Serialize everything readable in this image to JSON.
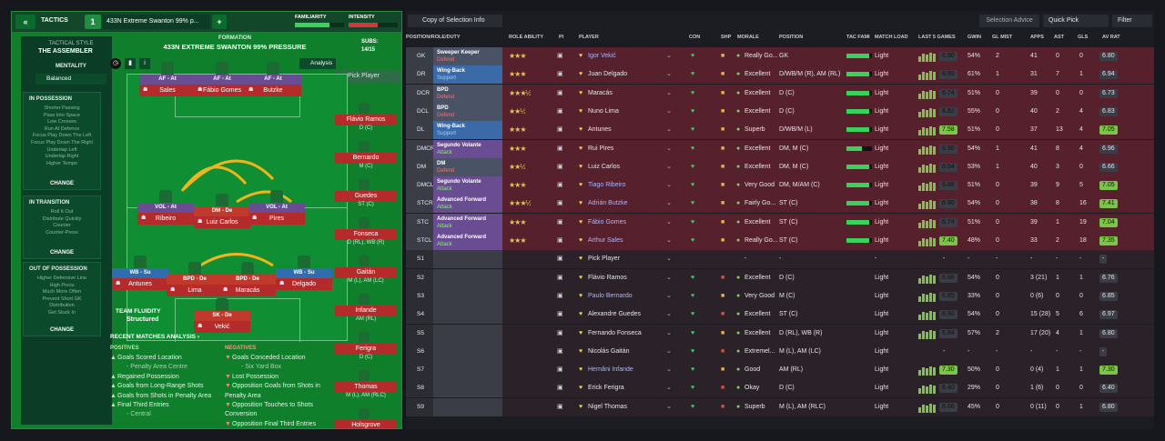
{
  "tactics_bar": {
    "back_label": "«",
    "tactics_label": "TACTICS",
    "slot_number": "1",
    "tactic_name": "433N Extreme Swanton 99% p...",
    "add_label": "+",
    "familiarity_label": "FAMILIARITY",
    "intensity_label": "INTENSITY"
  },
  "tactical_style": {
    "label": "TACTICAL STYLE",
    "value": "THE ASSEMBLER",
    "mentality_label": "MENTALITY",
    "mentality_value": "Balanced"
  },
  "in_possession": {
    "title": "IN POSSESSION",
    "items": [
      "Shorter Passing",
      "Pass Into Space",
      "Low Crosses",
      "Run At Defence",
      "Focus Play Down The Left",
      "Focus Play Down The Right",
      "Underlap Left",
      "Underlap Right",
      "Higher Tempo"
    ],
    "change": "CHANGE"
  },
  "in_transition": {
    "title": "IN TRANSITION",
    "items": [
      "Roll It Out",
      "Distribute Quickly",
      "Counter",
      "Counter-Press"
    ],
    "change": "CHANGE"
  },
  "out_of_possession": {
    "title": "OUT OF POSSESSION",
    "items": [
      "Higher Defensive Line",
      "High Press",
      "Much More Often",
      "Prevent Short GK",
      "Distribution",
      "Get Stuck In"
    ],
    "change": "CHANGE"
  },
  "formation": {
    "label": "FORMATION",
    "name": "433N EXTREME SWANTON 99% PRESSURE",
    "subs_label": "SUBS:",
    "subs_value": "14/15",
    "analysis_label": "Analysis",
    "pick_player": "Pick Player",
    "team_fluidity_label": "TEAM FLUIDITY",
    "team_fluidity_value": "Structured"
  },
  "pitch_players": [
    {
      "role": "AF - At",
      "name": "Sales"
    },
    {
      "role": "AF - At",
      "name": "Fábio Gomes"
    },
    {
      "role": "AF - At",
      "name": "Butzke"
    },
    {
      "role": "VOL - At",
      "name": "Ribeiro"
    },
    {
      "role": "DM - De",
      "name": "Luiz Carlos"
    },
    {
      "role": "VOL - At",
      "name": "Pires"
    },
    {
      "role": "WB - Su",
      "name": "Antunes"
    },
    {
      "role": "BPD - De",
      "name": "Lima"
    },
    {
      "role": "BPD - De",
      "name": "Maracás"
    },
    {
      "role": "WB - Su",
      "name": "Delgado"
    },
    {
      "role": "SK - De",
      "name": "Vekić"
    }
  ],
  "subs": [
    {
      "name": "Flávio Ramos",
      "pos": "D (C)"
    },
    {
      "name": "Bernardo",
      "pos": "M (C)"
    },
    {
      "name": "Guedes",
      "pos": "ST (C)"
    },
    {
      "name": "Fonseca",
      "pos": "D (RL), WB (R)"
    },
    {
      "name": "Gaitán",
      "pos": "M (L), AM (LC)"
    },
    {
      "name": "Infande",
      "pos": "AM (RL)"
    },
    {
      "name": "Ferigra",
      "pos": "D (C)"
    },
    {
      "name": "Thomas",
      "pos": "M (L), AM (RLC)"
    },
    {
      "name": "Holsgrove",
      "pos": ""
    }
  ],
  "recent": {
    "title": "RECENT MATCHES ANALYSIS ›",
    "positives_label": "POSITIVES",
    "negatives_label": "NEGATIVES",
    "positives": [
      "Goals Scored Location",
      "- Penalty Area Centre",
      "Regained Possession",
      "Goals from Long-Range Shots",
      "Goals from Shots in Penalty Area",
      "Final Third Entries",
      "- Central"
    ],
    "negatives": [
      "Goals Conceded Location",
      "- Six Yard Box",
      "Lost Possession",
      "Opposition Goals from Shots in Penalty Area",
      "Opposition Touches to Shots Conversion",
      "Opposition Final Third Entries"
    ]
  },
  "toolbar": {
    "view_label": "Copy of Selection Info",
    "selection_advice": "Selection Advice",
    "quick_pick": "Quick Pick",
    "filter": "Filter"
  },
  "columns": [
    "POSITION/ROLE/DUTY",
    "ROLE ABILITY",
    "PI",
    "PLAYER",
    "CON",
    "SHP",
    "MORALE",
    "POSITION",
    "TAC FAMI",
    "MATCH LOAD",
    "LAST 5 GAMES",
    "GWIN",
    "GL MIST",
    "APPS",
    "AST",
    "GLS",
    "AV RAT"
  ],
  "rows": [
    {
      "pos": "GK",
      "role": "Sweeper Keeper",
      "duty": "Defend",
      "stars": "★★★",
      "player": "Igor Vekić",
      "morale": "Really Go...",
      "position": "GK",
      "load": "Light",
      "last": "6.90",
      "gwin": "54%",
      "glmist": "2",
      "apps": "41",
      "ast": "0",
      "gls": "0",
      "avrat": "6.80"
    },
    {
      "pos": "DR",
      "role": "Wing-Back",
      "duty": "Support",
      "stars": "★★★",
      "player": "Juan Delgado",
      "morale": "Excellent",
      "position": "D/WB/M (R), AM (RL)",
      "load": "Light",
      "last": "6.90",
      "gwin": "61%",
      "glmist": "1",
      "apps": "31",
      "ast": "7",
      "gls": "1",
      "avrat": "6.94"
    },
    {
      "pos": "DCR",
      "role": "BPD",
      "duty": "Defend",
      "stars": "★★★½",
      "player": "Maracás",
      "morale": "Excellent",
      "position": "D (C)",
      "load": "Light",
      "last": "6.74",
      "gwin": "51%",
      "glmist": "0",
      "apps": "39",
      "ast": "0",
      "gls": "0",
      "avrat": "6.73"
    },
    {
      "pos": "DCL",
      "role": "BPD",
      "duty": "Defend",
      "stars": "★★½",
      "player": "Nuno Lima",
      "morale": "Excellent",
      "position": "D (C)",
      "load": "Light",
      "last": "6.82",
      "gwin": "55%",
      "glmist": "0",
      "apps": "40",
      "ast": "2",
      "gls": "4",
      "avrat": "6.83"
    },
    {
      "pos": "DL",
      "role": "Wing-Back",
      "duty": "Support",
      "stars": "★★★",
      "player": "Antunes",
      "morale": "Superb",
      "position": "D/WB/M (L)",
      "load": "Light",
      "last": "7.58",
      "gwin": "51%",
      "glmist": "0",
      "apps": "37",
      "ast": "13",
      "gls": "4",
      "avrat": "7.05"
    },
    {
      "pos": "DMCR",
      "role": "Segundo Volante",
      "duty": "Attack",
      "stars": "★★★",
      "player": "Rui Pires",
      "morale": "Excellent",
      "position": "DM, M (C)",
      "load": "Light",
      "last": "6.90",
      "gwin": "54%",
      "glmist": "1",
      "apps": "41",
      "ast": "8",
      "gls": "4",
      "avrat": "6.96"
    },
    {
      "pos": "DM",
      "role": "DM",
      "duty": "Defend",
      "stars": "★★½",
      "player": "Luiz Carlos",
      "morale": "Excellent",
      "position": "DM, M (C)",
      "load": "Light",
      "last": "6.54",
      "gwin": "53%",
      "glmist": "1",
      "apps": "40",
      "ast": "3",
      "gls": "0",
      "avrat": "6.66"
    },
    {
      "pos": "DMCL",
      "role": "Segundo Volante",
      "duty": "Attack",
      "stars": "★★★",
      "player": "Tiago Ribeiro",
      "morale": "Very Good",
      "position": "DM, M/AM (C)",
      "load": "Light",
      "last": "6.88",
      "gwin": "51%",
      "glmist": "0",
      "apps": "39",
      "ast": "9",
      "gls": "5",
      "avrat": "7.05"
    },
    {
      "pos": "STCR",
      "role": "Advanced Forward",
      "duty": "Attack",
      "stars": "★★★½",
      "player": "Adrián Butzke",
      "morale": "Fairly Go...",
      "position": "ST (C)",
      "load": "Light",
      "last": "6.90",
      "gwin": "54%",
      "glmist": "0",
      "apps": "38",
      "ast": "8",
      "gls": "16",
      "avrat": "7.41"
    },
    {
      "pos": "STC",
      "role": "Advanced Forward",
      "duty": "Attack",
      "stars": "★★★",
      "player": "Fábio Gomes",
      "morale": "Excellent",
      "position": "ST (C)",
      "load": "Light",
      "last": "6.74",
      "gwin": "51%",
      "glmist": "0",
      "apps": "39",
      "ast": "1",
      "gls": "19",
      "avrat": "7.04"
    },
    {
      "pos": "STCL",
      "role": "Advanced Forward",
      "duty": "Attack",
      "stars": "★★★",
      "player": "Arthur Sales",
      "morale": "Really Go...",
      "position": "ST (C)",
      "load": "Light",
      "last": "7.40",
      "gwin": "48%",
      "glmist": "0",
      "apps": "33",
      "ast": "2",
      "gls": "18",
      "avrat": "7.35"
    },
    {
      "pos": "S1",
      "role": "",
      "duty": "",
      "stars": "",
      "player": "Pick Player",
      "morale": "-",
      "position": "-",
      "load": "-",
      "last": "-",
      "gwin": "-",
      "glmist": "-",
      "apps": "-",
      "ast": "-",
      "gls": "-",
      "avrat": "-"
    },
    {
      "pos": "S2",
      "role": "",
      "duty": "",
      "stars": "",
      "player": "Flávio Ramos",
      "morale": "Excellent",
      "position": "D (C)",
      "load": "Light",
      "last": "6.88",
      "gwin": "54%",
      "glmist": "0",
      "apps": "3 (21)",
      "ast": "1",
      "gls": "1",
      "avrat": "6.76"
    },
    {
      "pos": "S3",
      "role": "",
      "duty": "",
      "stars": "",
      "player": "Paulo Bernardo",
      "morale": "Very Good",
      "position": "M (C)",
      "load": "Light",
      "last": "6.85",
      "gwin": "33%",
      "glmist": "0",
      "apps": "0 (6)",
      "ast": "0",
      "gls": "0",
      "avrat": "6.85"
    },
    {
      "pos": "S4",
      "role": "",
      "duty": "",
      "stars": "",
      "player": "Alexandre Guedes",
      "morale": "Excellent",
      "position": "ST (C)",
      "load": "Light",
      "last": "6.90",
      "gwin": "54%",
      "glmist": "0",
      "apps": "15 (28)",
      "ast": "5",
      "gls": "6",
      "avrat": "6.97"
    },
    {
      "pos": "S5",
      "role": "",
      "duty": "",
      "stars": "",
      "player": "Fernando Fonseca",
      "morale": "Excellent",
      "position": "D (RL), WB (R)",
      "load": "Light",
      "last": "6.84",
      "gwin": "57%",
      "glmist": "2",
      "apps": "17 (20)",
      "ast": "4",
      "gls": "1",
      "avrat": "6.80"
    },
    {
      "pos": "S6",
      "role": "",
      "duty": "",
      "stars": "",
      "player": "Nicolás Gaitán",
      "morale": "Extremel...",
      "position": "M (L), AM (LC)",
      "load": "Light",
      "last": "-",
      "gwin": "-",
      "glmist": "-",
      "apps": "-",
      "ast": "-",
      "gls": "-",
      "avrat": "-"
    },
    {
      "pos": "S7",
      "role": "",
      "duty": "",
      "stars": "",
      "player": "Hernâni Infande",
      "morale": "Good",
      "position": "AM (RL)",
      "load": "Light",
      "last": "7.30",
      "gwin": "50%",
      "glmist": "0",
      "apps": "0 (4)",
      "ast": "1",
      "gls": "1",
      "avrat": "7.30"
    },
    {
      "pos": "S8",
      "role": "",
      "duty": "",
      "stars": "",
      "player": "Erick Ferigra",
      "morale": "Okay",
      "position": "D (C)",
      "load": "Light",
      "last": "6.40",
      "gwin": "29%",
      "glmist": "0",
      "apps": "1 (6)",
      "ast": "0",
      "gls": "0",
      "avrat": "6.40"
    },
    {
      "pos": "S9",
      "role": "",
      "duty": "",
      "stars": "",
      "player": "Nigel Thomas",
      "morale": "Superb",
      "position": "M (L), AM (RLC)",
      "load": "Light",
      "last": "6.66",
      "gwin": "45%",
      "glmist": "0",
      "apps": "0 (11)",
      "ast": "0",
      "gls": "1",
      "avrat": "6.80"
    }
  ]
}
